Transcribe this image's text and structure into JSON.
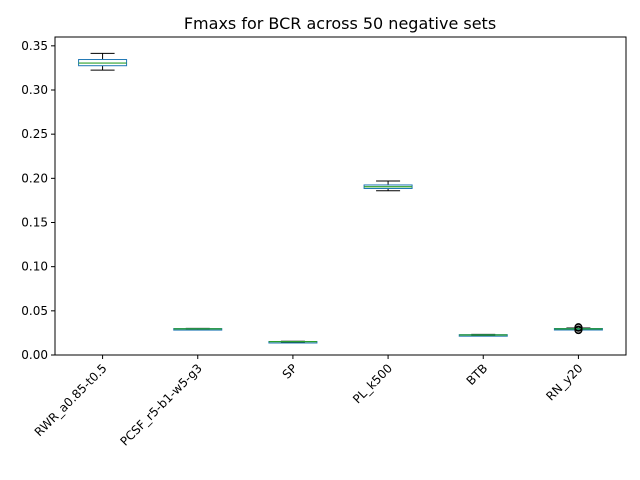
{
  "chart_data": {
    "type": "box",
    "title": "Fmaxs for BCR across 50 negative sets",
    "xlabel": "",
    "ylabel": "",
    "ylim": [
      0.0,
      0.36
    ],
    "yticks": [
      0.0,
      0.05,
      0.1,
      0.15,
      0.2,
      0.25,
      0.3,
      0.35
    ],
    "ytick_labels": [
      "0.00",
      "0.05",
      "0.10",
      "0.15",
      "0.20",
      "0.25",
      "0.30",
      "0.35"
    ],
    "grid": false,
    "colors": {
      "box": "#1f77b4",
      "median": "#2ca02c",
      "whisker": "#000000"
    },
    "categories": [
      "RWR_a0.85-t0.5",
      "PCSF_r5-b1-w5-g3",
      "SP",
      "PL_k500",
      "BTB",
      "RN_y20"
    ],
    "boxes": [
      {
        "whislo": 0.3225,
        "q1": 0.3275,
        "med": 0.3305,
        "q3": 0.3345,
        "whishi": 0.3415,
        "fliers": []
      },
      {
        "whislo": 0.029,
        "q1": 0.0293,
        "med": 0.0296,
        "q3": 0.0299,
        "whishi": 0.0302,
        "fliers": []
      },
      {
        "whislo": 0.0147,
        "q1": 0.0149,
        "med": 0.0151,
        "q3": 0.0153,
        "whishi": 0.0155,
        "fliers": []
      },
      {
        "whislo": 0.186,
        "q1": 0.1885,
        "med": 0.1905,
        "q3": 0.1925,
        "whishi": 0.197,
        "fliers": []
      },
      {
        "whislo": 0.0218,
        "q1": 0.0222,
        "med": 0.0226,
        "q3": 0.023,
        "whishi": 0.0234,
        "fliers": []
      },
      {
        "whislo": 0.0285,
        "q1": 0.0292,
        "med": 0.0296,
        "q3": 0.03,
        "whishi": 0.0306,
        "fliers": [
          0.0281,
          0.0284,
          0.0288,
          0.0308,
          0.0312,
          0.0315
        ]
      }
    ]
  }
}
